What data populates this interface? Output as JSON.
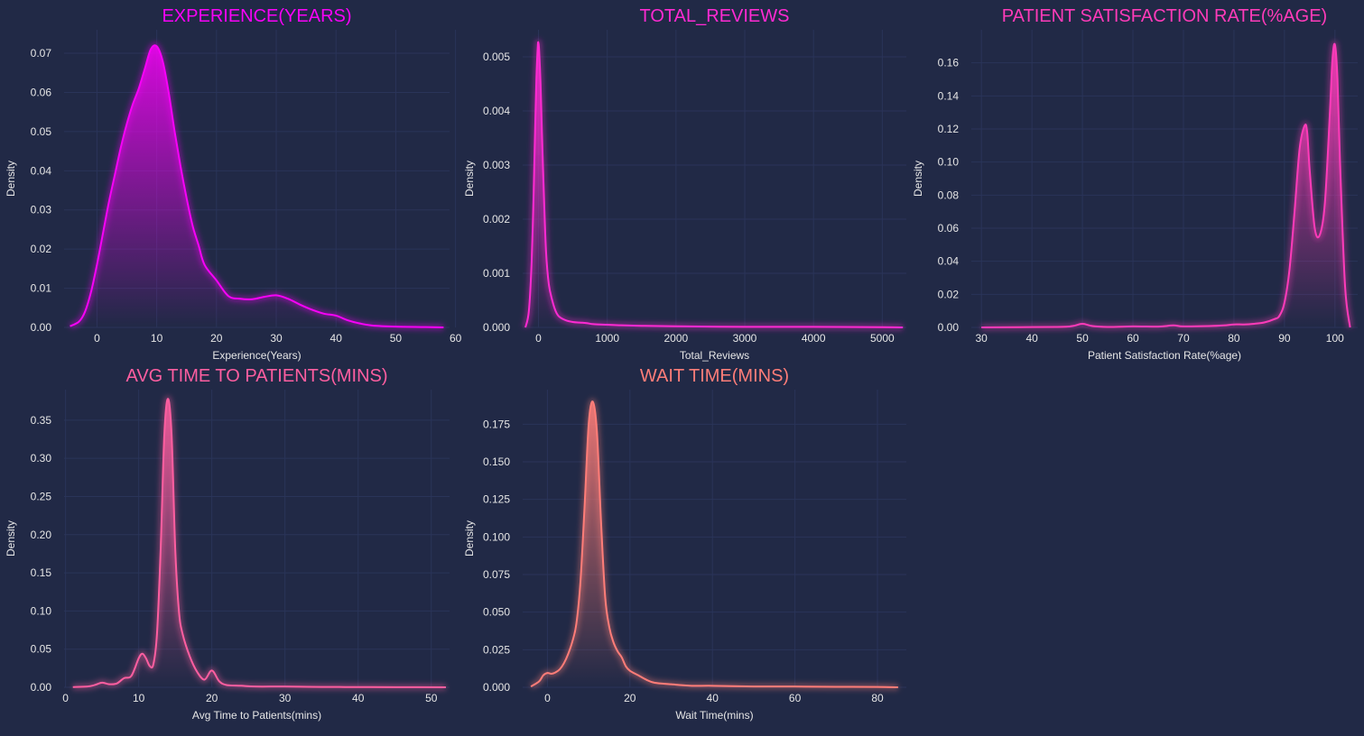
{
  "colors": {
    "background": "#212946",
    "grid": "#2A3459",
    "text": "#E6E6E6",
    "series": [
      "#F702F7",
      "#FE2AD2",
      "#FE3BB9",
      "#FE5EA0",
      "#FF7D78"
    ]
  },
  "chart_data": [
    {
      "type": "area",
      "title": "EXPERIENCE(YEARS)",
      "xlabel": "Experience(Years)",
      "ylabel": "Density",
      "xlim": [
        -5.5,
        59
      ],
      "ylim": [
        0,
        0.076
      ],
      "xticks": [
        0,
        10,
        20,
        30,
        40,
        50,
        60
      ],
      "yticks": [
        0.0,
        0.01,
        0.02,
        0.03,
        0.04,
        0.05,
        0.06,
        0.07
      ],
      "ytick_decimals": 2,
      "grid": true,
      "x": [
        -4.5,
        -3,
        -2,
        -1,
        0,
        1,
        2,
        3,
        4,
        5,
        6,
        7,
        8,
        9,
        10,
        11,
        12,
        13,
        14,
        15,
        16,
        17,
        18,
        20,
        22,
        24,
        26,
        28,
        30,
        32,
        34,
        36,
        38,
        40,
        42,
        44,
        46,
        50,
        55,
        58
      ],
      "y": [
        0.0003,
        0.0015,
        0.004,
        0.009,
        0.016,
        0.024,
        0.032,
        0.039,
        0.046,
        0.052,
        0.057,
        0.061,
        0.066,
        0.071,
        0.0718,
        0.068,
        0.06,
        0.05,
        0.041,
        0.033,
        0.026,
        0.021,
        0.016,
        0.012,
        0.008,
        0.0073,
        0.0072,
        0.0078,
        0.0082,
        0.0073,
        0.0058,
        0.0045,
        0.0035,
        0.003,
        0.0018,
        0.001,
        0.0005,
        0.0002,
        0.0001,
        0.0
      ]
    },
    {
      "type": "area",
      "title": "TOTAL_REVIEWS",
      "xlabel": "Total_Reviews",
      "ylabel": "Density",
      "xlim": [
        -230,
        5350
      ],
      "ylim": [
        0,
        0.0055
      ],
      "xticks": [
        0,
        1000,
        2000,
        3000,
        4000,
        5000
      ],
      "yticks": [
        0.0,
        0.001,
        0.002,
        0.003,
        0.004,
        0.005
      ],
      "ytick_decimals": 3,
      "grid": true,
      "x": [
        -190,
        -140,
        -100,
        -70,
        -50,
        -30,
        -10,
        0,
        10,
        30,
        50,
        80,
        110,
        150,
        200,
        250,
        300,
        400,
        500,
        600,
        700,
        800,
        1000,
        1200,
        1500,
        2000,
        3000,
        4000,
        5000,
        5300
      ],
      "y": [
        0.0,
        0.0003,
        0.0012,
        0.0025,
        0.0036,
        0.0046,
        0.0052,
        0.00525,
        0.0051,
        0.0045,
        0.0036,
        0.0024,
        0.0014,
        0.0008,
        0.0005,
        0.0003,
        0.0002,
        0.00013,
        0.0001,
        9e-05,
        8e-05,
        6e-05,
        5e-05,
        4e-05,
        3e-05,
        2e-05,
        1e-05,
        1e-05,
        5e-06,
        0.0
      ]
    },
    {
      "type": "area",
      "title": "PATIENT SATISFACTION RATE(%AGE)",
      "xlabel": "Patient Satisfaction Rate(%age)",
      "ylabel": "Density",
      "xlim": [
        28,
        104.5
      ],
      "ylim": [
        0,
        0.18
      ],
      "xticks": [
        30,
        40,
        50,
        60,
        70,
        80,
        90,
        100
      ],
      "yticks": [
        0.0,
        0.02,
        0.04,
        0.06,
        0.08,
        0.1,
        0.12,
        0.14,
        0.16
      ],
      "ytick_decimals": 2,
      "grid": true,
      "x": [
        30,
        45,
        48,
        50,
        52,
        55,
        60,
        65,
        68,
        70,
        75,
        78,
        80,
        82,
        84,
        86,
        88,
        89,
        90,
        91,
        92,
        93,
        94,
        94.5,
        95,
        96,
        97,
        98,
        99,
        99.5,
        100,
        100.5,
        101,
        102,
        103
      ],
      "y": [
        0.0,
        0.0003,
        0.0008,
        0.0022,
        0.0008,
        0.0003,
        0.0006,
        0.0005,
        0.0012,
        0.0006,
        0.0008,
        0.0012,
        0.0018,
        0.0018,
        0.0022,
        0.003,
        0.005,
        0.007,
        0.015,
        0.035,
        0.07,
        0.108,
        0.122,
        0.118,
        0.095,
        0.06,
        0.056,
        0.075,
        0.13,
        0.162,
        0.171,
        0.15,
        0.1,
        0.025,
        0.0
      ]
    },
    {
      "type": "area",
      "title": "AVG TIME TO PATIENTS(MINS)",
      "xlabel": "Avg Time to Patients(mins)",
      "ylabel": "Density",
      "xlim": [
        -0.2,
        52.5
      ],
      "ylim": [
        0,
        0.39
      ],
      "xticks": [
        0,
        10,
        20,
        30,
        40,
        50
      ],
      "yticks": [
        0.0,
        0.05,
        0.1,
        0.15,
        0.2,
        0.25,
        0.3,
        0.35
      ],
      "ytick_decimals": 2,
      "grid": true,
      "x": [
        1,
        3,
        4,
        5,
        6,
        7,
        8,
        9,
        10,
        10.5,
        11,
        11.5,
        12,
        12.5,
        13,
        13.5,
        14,
        14.5,
        15,
        15.5,
        16,
        17,
        18,
        19,
        20,
        21,
        22,
        24,
        26,
        30,
        35,
        40,
        45,
        52
      ],
      "y": [
        0.0003,
        0.001,
        0.003,
        0.006,
        0.004,
        0.005,
        0.012,
        0.015,
        0.038,
        0.044,
        0.038,
        0.028,
        0.03,
        0.07,
        0.18,
        0.33,
        0.378,
        0.33,
        0.18,
        0.1,
        0.07,
        0.04,
        0.02,
        0.01,
        0.022,
        0.008,
        0.003,
        0.002,
        0.001,
        0.001,
        0.0005,
        0.0003,
        0.0002,
        0.0
      ]
    },
    {
      "type": "area",
      "title": "WAIT TIME(MINS)",
      "xlabel": "Wait Time(mins)",
      "ylabel": "Density",
      "xlim": [
        -6,
        87
      ],
      "ylim": [
        0,
        0.198
      ],
      "xticks": [
        0,
        20,
        40,
        60,
        80
      ],
      "yticks": [
        0.0,
        0.025,
        0.05,
        0.075,
        0.1,
        0.125,
        0.15,
        0.175
      ],
      "ytick_decimals": 3,
      "grid": true,
      "x": [
        -4,
        -2,
        -1,
        0,
        1,
        2,
        3,
        4,
        5,
        6,
        7,
        8,
        9,
        10,
        11,
        12,
        13,
        14,
        15,
        16,
        17,
        18,
        19,
        20,
        22,
        24,
        26,
        30,
        35,
        40,
        50,
        60,
        70,
        80,
        85
      ],
      "y": [
        0.0005,
        0.004,
        0.008,
        0.0095,
        0.009,
        0.01,
        0.012,
        0.016,
        0.022,
        0.03,
        0.042,
        0.07,
        0.12,
        0.175,
        0.19,
        0.17,
        0.11,
        0.06,
        0.04,
        0.03,
        0.024,
        0.02,
        0.014,
        0.011,
        0.008,
        0.005,
        0.003,
        0.002,
        0.001,
        0.001,
        0.0005,
        0.0005,
        0.0003,
        0.0002,
        0.0
      ]
    }
  ]
}
